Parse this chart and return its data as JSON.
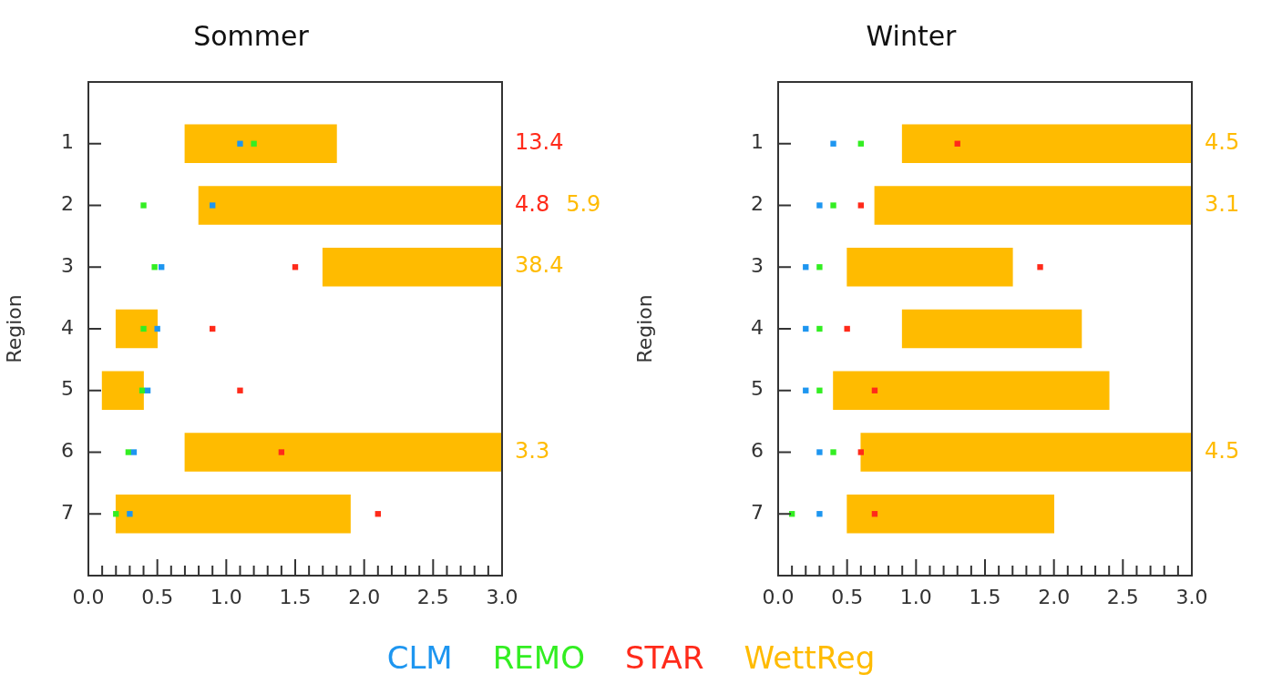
{
  "chart_data": [
    {
      "type": "bar",
      "orientation": "horizontal",
      "title": "Sommer",
      "ylabel": "Region",
      "legend": "bottom",
      "categories": [
        "1",
        "2",
        "3",
        "4",
        "5",
        "6",
        "7"
      ],
      "xlim": [
        0,
        3.0
      ],
      "xticks": [
        {
          "value": 0,
          "label": "0.0"
        },
        {
          "value": 0.1,
          "label": null
        },
        {
          "value": 0.2,
          "label": null
        },
        {
          "value": 0.3,
          "label": null
        },
        {
          "value": 0.4,
          "label": null
        },
        {
          "value": 0.5,
          "label": "0.5"
        },
        {
          "value": 0.6,
          "label": null
        },
        {
          "value": 0.7,
          "label": null
        },
        {
          "value": 0.8,
          "label": null
        },
        {
          "value": 0.9,
          "label": null
        },
        {
          "value": 1,
          "label": "1.0"
        },
        {
          "value": 1.1,
          "label": null
        },
        {
          "value": 1.2,
          "label": null
        },
        {
          "value": 1.3,
          "label": null
        },
        {
          "value": 1.4,
          "label": null
        },
        {
          "value": 1.5,
          "label": "1.5"
        },
        {
          "value": 1.6,
          "label": null
        },
        {
          "value": 1.7,
          "label": null
        },
        {
          "value": 1.8,
          "label": null
        },
        {
          "value": 1.9,
          "label": null
        },
        {
          "value": 2,
          "label": "2.0"
        },
        {
          "value": 2.1,
          "label": null
        },
        {
          "value": 2.2,
          "label": null
        },
        {
          "value": 2.3,
          "label": null
        },
        {
          "value": 2.4,
          "label": null
        },
        {
          "value": 2.5,
          "label": "2.5"
        },
        {
          "value": 2.6,
          "label": null
        },
        {
          "value": 2.7,
          "label": null
        },
        {
          "value": 2.8,
          "label": null
        },
        {
          "value": 2.9,
          "label": null
        },
        {
          "value": 3,
          "label": "3.0"
        }
      ],
      "annotations": [
        "13.4",
        "4.8"
      ],
      "marker": "square",
      "series": [
        {
          "name": "CLM",
          "type": "scatter",
          "color": "#1e96f0",
          "values": [
            1.1,
            0.9,
            0.53,
            0.5,
            0.43,
            0.33,
            0.3
          ]
        },
        {
          "name": "REMO",
          "type": "scatter",
          "color": "#33ee22",
          "values": [
            1.2,
            0.4,
            0.48,
            0.4,
            0.39,
            0.29,
            0.2
          ]
        },
        {
          "name": "STAR",
          "type": "scatter",
          "color": "#ff2a1a",
          "values": [
            null,
            null,
            1.5,
            0.9,
            1.1,
            1.4,
            2.1
          ]
        },
        {
          "name": "WettReg",
          "type": "bar",
          "color": "#ffbb00",
          "base": [
            0.7,
            0.8,
            1.7,
            0.2,
            0.1,
            0.7,
            0.2
          ],
          "values": [
            1.1,
            5.1,
            36.7,
            0.3,
            0.3,
            2.6,
            1.7
          ],
          "value_labels": [
            null,
            "5.9",
            "38.4",
            null,
            null,
            "3.3",
            null
          ]
        }
      ]
    },
    {
      "type": "bar",
      "orientation": "horizontal",
      "title": "Winter",
      "ylabel": "Region",
      "marker": "square",
      "categories": [
        "1",
        "2",
        "3",
        "4",
        "5",
        "6",
        "7"
      ],
      "xlim": [
        0,
        3.0
      ],
      "xticks": [
        {
          "value": 0,
          "label": "0.0"
        },
        {
          "value": 0.1,
          "label": null
        },
        {
          "value": 0.2,
          "label": null
        },
        {
          "value": 0.3,
          "label": null
        },
        {
          "value": 0.4,
          "label": null
        },
        {
          "value": 0.5,
          "label": "0.5"
        },
        {
          "value": 0.6,
          "label": null
        },
        {
          "value": 0.7,
          "label": null
        },
        {
          "value": 0.8,
          "label": null
        },
        {
          "value": 0.9,
          "label": null
        },
        {
          "value": 1,
          "label": "1.0"
        },
        {
          "value": 1.1,
          "label": null
        },
        {
          "value": 1.2,
          "label": null
        },
        {
          "value": 1.3,
          "label": null
        },
        {
          "value": 1.4,
          "label": null
        },
        {
          "value": 1.5,
          "label": "1.5"
        },
        {
          "value": 1.6,
          "label": null
        },
        {
          "value": 1.7,
          "label": null
        },
        {
          "value": 1.8,
          "label": null
        },
        {
          "value": 1.9,
          "label": null
        },
        {
          "value": 2,
          "label": "2.0"
        },
        {
          "value": 2.1,
          "label": null
        },
        {
          "value": 2.2,
          "label": null
        },
        {
          "value": 2.3,
          "label": null
        },
        {
          "value": 2.4,
          "label": null
        },
        {
          "value": 2.5,
          "label": "2.5"
        },
        {
          "value": 2.6,
          "label": null
        },
        {
          "value": 2.7,
          "label": null
        },
        {
          "value": 2.8,
          "label": null
        },
        {
          "value": 2.9,
          "label": null
        },
        {
          "value": 3,
          "label": "3.0"
        }
      ],
      "series": [
        {
          "type": "scatter",
          "color": "#1e96f0",
          "values": [
            0.4,
            0.3,
            0.2,
            0.2,
            0.2,
            0.3,
            0.3
          ]
        },
        {
          "type": "scatter",
          "color": "#33ee22",
          "values": [
            0.6,
            0.4,
            0.3,
            0.3,
            0.3,
            0.4,
            0.1
          ]
        },
        {
          "type": "scatter",
          "color": "#ff2a1a",
          "values": [
            1.3,
            0.6,
            1.9,
            0.5,
            0.7,
            0.6,
            0.7
          ]
        },
        {
          "type": "bar",
          "color": "#ffbb00",
          "base": [
            0.9,
            0.7,
            0.5,
            0.9,
            0.4,
            0.6,
            0.5
          ],
          "values": [
            3.6,
            2.4,
            1.2,
            1.3,
            2.0,
            3.9,
            1.5
          ],
          "value_labels": [
            "4.5",
            "3.1",
            null,
            null,
            null,
            "4.5",
            null
          ]
        }
      ]
    }
  ]
}
